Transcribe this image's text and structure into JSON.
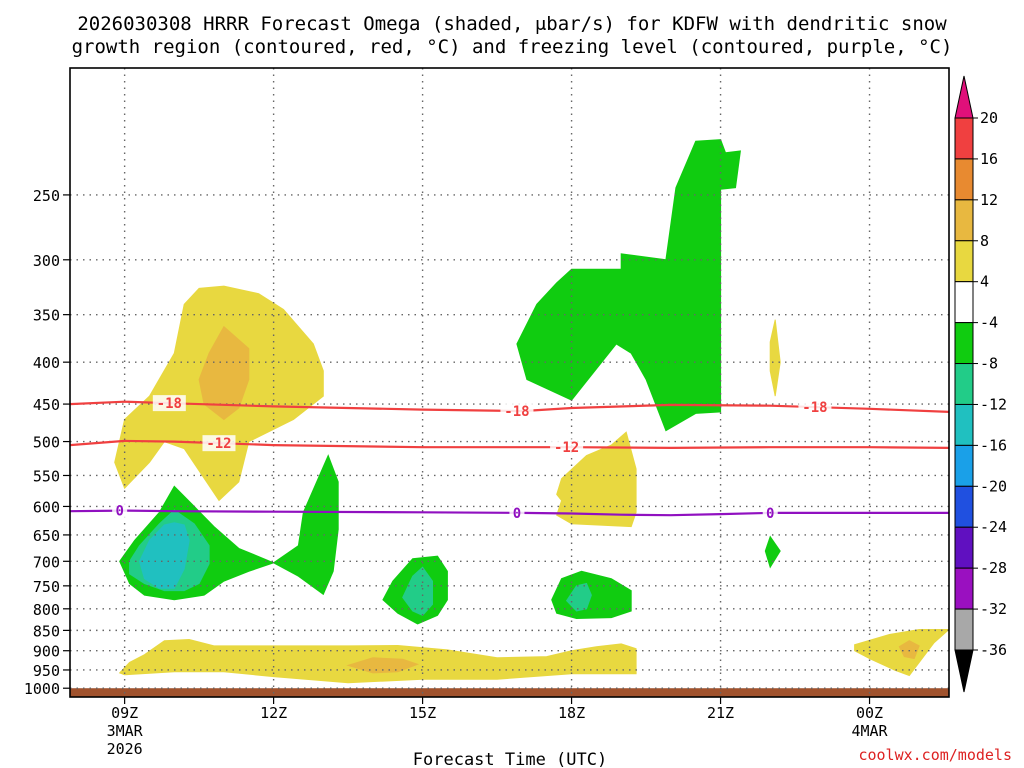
{
  "chart_data": {
    "type": "heatmap",
    "title_line1": "2026030308 HRRR Forecast Omega (shaded, μbar/s) for KDFW with dendritic snow",
    "title_line2": "growth region (contoured, red, °C) and freezing level (contoured, purple, °C)",
    "xlabel": "Forecast Time (UTC)",
    "ylabel": "",
    "credit": "coolwx.com/models",
    "x_range_hours": [
      7.9,
      25.6
    ],
    "y_range_hpa": [
      1025,
      175
    ],
    "pressure_ticks": [
      250,
      300,
      350,
      400,
      450,
      500,
      550,
      600,
      650,
      700,
      750,
      800,
      850,
      900,
      950,
      1000
    ],
    "pressure_tick_labels": [
      "250",
      "300",
      "350",
      "400",
      "450",
      "500",
      "550",
      "600",
      "650",
      "700",
      "750",
      "800",
      "850",
      "900",
      "950",
      "1000"
    ],
    "time_ticks": [
      {
        "hour": 9,
        "label": "09Z",
        "sub1": "3MAR",
        "sub2": "2026"
      },
      {
        "hour": 12,
        "label": "12Z",
        "sub1": "",
        "sub2": ""
      },
      {
        "hour": 15,
        "label": "15Z",
        "sub1": "",
        "sub2": ""
      },
      {
        "hour": 18,
        "label": "18Z",
        "sub1": "",
        "sub2": ""
      },
      {
        "hour": 21,
        "label": "21Z",
        "sub1": "",
        "sub2": ""
      },
      {
        "hour": 24,
        "label": "00Z",
        "sub1": "4MAR",
        "sub2": ""
      }
    ],
    "colorbar": {
      "labels": [
        "20",
        "16",
        "12",
        "8",
        "4",
        "-4",
        "-8",
        "-12",
        "-16",
        "-20",
        "-24",
        "-28",
        "-32",
        "-36"
      ],
      "colors": [
        "#f04040",
        "#e88a30",
        "#e8b840",
        "#e8d840",
        "#ffffff",
        "#10cc10",
        "#22cc88",
        "#20c0c0",
        "#1aa0e8",
        "#2050e0",
        "#6010c0",
        "#9a10c0",
        "#a8a8a8"
      ],
      "top_arrow_color": "#e0107a",
      "bottom_arrow_color": "#000000",
      "ground_color": "#a0522d"
    },
    "contours": [
      {
        "name": "dgz-minus-18",
        "label": "-18",
        "color": "#f04040",
        "points": [
          [
            7.9,
            450
          ],
          [
            9,
            447
          ],
          [
            10,
            449
          ],
          [
            12,
            453
          ],
          [
            15,
            457
          ],
          [
            17,
            459
          ],
          [
            18,
            455
          ],
          [
            20,
            451
          ],
          [
            22,
            452
          ],
          [
            24,
            456
          ],
          [
            25.6,
            460
          ]
        ],
        "label_hours": [
          9.9,
          16.9,
          22.9
        ]
      },
      {
        "name": "dgz-minus-12",
        "label": "-12",
        "color": "#f04040",
        "points": [
          [
            7.9,
            505
          ],
          [
            9,
            499
          ],
          [
            10,
            500
          ],
          [
            12,
            505
          ],
          [
            15,
            508
          ],
          [
            18,
            508
          ],
          [
            20,
            509
          ],
          [
            22,
            508
          ],
          [
            24,
            508
          ],
          [
            25.6,
            509
          ]
        ],
        "label_hours": [
          10.9,
          17.9
        ]
      },
      {
        "name": "freezing-level-0",
        "label": "0",
        "color": "#9010c0",
        "points": [
          [
            7.9,
            608
          ],
          [
            9,
            607
          ],
          [
            10,
            608
          ],
          [
            12,
            609
          ],
          [
            15,
            610
          ],
          [
            17,
            611
          ],
          [
            18,
            612
          ],
          [
            19,
            614
          ],
          [
            20,
            615
          ],
          [
            21,
            613
          ],
          [
            22,
            611
          ],
          [
            24,
            611
          ],
          [
            25.6,
            611
          ]
        ],
        "label_hours": [
          8.9,
          16.9,
          22.0
        ]
      }
    ],
    "shaded_regions": [
      {
        "name": "upward-omega-aloft",
        "value": -4,
        "color": "#10cc10",
        "points": [
          [
            19.9,
            300
          ],
          [
            20.1,
            245
          ],
          [
            20.5,
            215
          ],
          [
            21.0,
            214
          ],
          [
            21.1,
            222
          ],
          [
            21.4,
            221
          ],
          [
            21.3,
            245
          ],
          [
            21.0,
            246
          ],
          [
            21.0,
            460
          ],
          [
            20.5,
            462
          ],
          [
            19.9,
            485
          ],
          [
            19.5,
            420
          ],
          [
            19.2,
            390
          ],
          [
            18.9,
            380
          ],
          [
            18.0,
            445
          ],
          [
            17.1,
            420
          ],
          [
            16.9,
            380
          ],
          [
            17.3,
            340
          ],
          [
            17.7,
            320
          ],
          [
            18.0,
            308
          ],
          [
            19.0,
            308
          ],
          [
            19.0,
            295
          ]
        ]
      },
      {
        "name": "weak-sinking-upper",
        "value": 4,
        "color": "#e8d840",
        "points": [
          [
            9.0,
            570
          ],
          [
            8.8,
            530
          ],
          [
            9.0,
            470
          ],
          [
            9.5,
            440
          ],
          [
            10.0,
            390
          ],
          [
            10.2,
            340
          ],
          [
            10.5,
            325
          ],
          [
            11.0,
            323
          ],
          [
            11.7,
            330
          ],
          [
            12.2,
            345
          ],
          [
            12.8,
            380
          ],
          [
            13.0,
            410
          ],
          [
            13.0,
            440
          ],
          [
            12.4,
            470
          ],
          [
            11.5,
            500
          ],
          [
            11.3,
            560
          ],
          [
            10.9,
            590
          ],
          [
            10.2,
            510
          ],
          [
            9.8,
            500
          ],
          [
            9.5,
            530
          ]
        ]
      },
      {
        "name": "moderate-sinking-upper",
        "value": 8,
        "color": "#e8b840",
        "points": [
          [
            10.6,
            450
          ],
          [
            10.5,
            420
          ],
          [
            10.7,
            390
          ],
          [
            11.0,
            362
          ],
          [
            11.5,
            385
          ],
          [
            11.5,
            420
          ],
          [
            11.3,
            455
          ],
          [
            11.0,
            470
          ]
        ]
      },
      {
        "name": "upward-omega-low-left",
        "value": -4,
        "color": "#10cc10",
        "points": [
          [
            8.9,
            700
          ],
          [
            9.2,
            660
          ],
          [
            9.7,
            610
          ],
          [
            10.0,
            567
          ],
          [
            10.4,
            600
          ],
          [
            10.8,
            635
          ],
          [
            11.3,
            675
          ],
          [
            12.0,
            703
          ],
          [
            11.5,
            720
          ],
          [
            11.0,
            740
          ],
          [
            10.6,
            770
          ],
          [
            10.0,
            780
          ],
          [
            9.4,
            770
          ],
          [
            9.1,
            745
          ]
        ]
      },
      {
        "name": "upward-omega-low-left-core",
        "value": -8,
        "color": "#22cc88",
        "points": [
          [
            9.1,
            700
          ],
          [
            9.3,
            670
          ],
          [
            9.7,
            630
          ],
          [
            10.0,
            606
          ],
          [
            10.4,
            630
          ],
          [
            10.7,
            670
          ],
          [
            10.7,
            705
          ],
          [
            10.5,
            745
          ],
          [
            10.2,
            760
          ],
          [
            9.8,
            760
          ],
          [
            9.4,
            745
          ],
          [
            9.1,
            725
          ]
        ]
      },
      {
        "name": "upward-omega-low-left-center",
        "value": -12,
        "color": "#20c0c0",
        "points": [
          [
            9.3,
            700
          ],
          [
            9.5,
            660
          ],
          [
            9.8,
            632
          ],
          [
            10.0,
            628
          ],
          [
            10.2,
            632
          ],
          [
            10.3,
            660
          ],
          [
            10.2,
            715
          ],
          [
            10.0,
            755
          ],
          [
            9.7,
            755
          ],
          [
            9.4,
            735
          ]
        ]
      },
      {
        "name": "upward-omega-13z",
        "value": -4,
        "color": "#10cc10",
        "points": [
          [
            12.0,
            703
          ],
          [
            12.5,
            670
          ],
          [
            12.6,
            610
          ],
          [
            13.1,
            520
          ],
          [
            13.3,
            560
          ],
          [
            13.3,
            640
          ],
          [
            13.2,
            720
          ],
          [
            13.0,
            768
          ],
          [
            12.5,
            730
          ]
        ]
      },
      {
        "name": "upward-omega-15z",
        "value": -4,
        "color": "#10cc10",
        "points": [
          [
            14.2,
            780
          ],
          [
            14.4,
            740
          ],
          [
            14.8,
            695
          ],
          [
            15.3,
            690
          ],
          [
            15.5,
            720
          ],
          [
            15.5,
            780
          ],
          [
            15.3,
            815
          ],
          [
            14.9,
            835
          ],
          [
            14.5,
            810
          ]
        ]
      },
      {
        "name": "upward-omega-15z-core",
        "value": -8,
        "color": "#22cc88",
        "points": [
          [
            14.6,
            775
          ],
          [
            14.8,
            730
          ],
          [
            15.0,
            712
          ],
          [
            15.2,
            740
          ],
          [
            15.2,
            790
          ],
          [
            15.0,
            815
          ],
          [
            14.8,
            805
          ]
        ]
      },
      {
        "name": "weak-sinking-18z",
        "value": 4,
        "color": "#e8d840",
        "points": [
          [
            17.7,
            580
          ],
          [
            17.8,
            555
          ],
          [
            18.3,
            520
          ],
          [
            18.8,
            505
          ],
          [
            19.1,
            487
          ],
          [
            19.3,
            540
          ],
          [
            19.3,
            610
          ],
          [
            19.2,
            635
          ],
          [
            18.0,
            630
          ],
          [
            17.7,
            615
          ],
          [
            17.8,
            590
          ]
        ]
      },
      {
        "name": "upward-omega-18z",
        "value": -4,
        "color": "#10cc10",
        "points": [
          [
            17.6,
            780
          ],
          [
            17.8,
            735
          ],
          [
            18.2,
            720
          ],
          [
            18.8,
            735
          ],
          [
            19.2,
            760
          ],
          [
            19.2,
            805
          ],
          [
            18.8,
            820
          ],
          [
            18.1,
            822
          ],
          [
            17.7,
            810
          ]
        ]
      },
      {
        "name": "upward-omega-18z-core",
        "value": -8,
        "color": "#22cc88",
        "points": [
          [
            17.9,
            782
          ],
          [
            18.1,
            750
          ],
          [
            18.3,
            745
          ],
          [
            18.4,
            770
          ],
          [
            18.3,
            800
          ],
          [
            18.1,
            805
          ]
        ]
      },
      {
        "name": "weak-sinking-22z-aloft",
        "value": 4,
        "color": "#e8d840",
        "points": [
          [
            22.0,
            378
          ],
          [
            22.1,
            355
          ],
          [
            22.2,
            400
          ],
          [
            22.1,
            440
          ],
          [
            22.0,
            410
          ]
        ]
      },
      {
        "name": "upward-omega-22z",
        "value": -4,
        "color": "#10cc10",
        "points": [
          [
            21.9,
            680
          ],
          [
            22.0,
            653
          ],
          [
            22.2,
            680
          ],
          [
            22.0,
            712
          ]
        ]
      },
      {
        "name": "weak-sinking-boundary-layer",
        "value": 4,
        "color": "#e8d840",
        "points": [
          [
            8.9,
            958
          ],
          [
            9.1,
            930
          ],
          [
            9.4,
            910
          ],
          [
            9.8,
            875
          ],
          [
            10.3,
            872
          ],
          [
            10.8,
            888
          ],
          [
            11.5,
            888
          ],
          [
            12.5,
            888
          ],
          [
            13.5,
            888
          ],
          [
            14.5,
            887
          ],
          [
            15.5,
            898
          ],
          [
            16.5,
            918
          ],
          [
            17.5,
            915
          ],
          [
            18.0,
            900
          ],
          [
            18.5,
            890
          ],
          [
            19.0,
            883
          ],
          [
            19.3,
            895
          ],
          [
            19.3,
            960
          ],
          [
            18.0,
            960
          ],
          [
            16.5,
            975
          ],
          [
            15.0,
            975
          ],
          [
            13.5,
            985
          ],
          [
            12.0,
            968
          ],
          [
            11.0,
            955
          ],
          [
            10.0,
            955
          ],
          [
            9.0,
            963
          ]
        ]
      },
      {
        "name": "moderate-sinking-boundary-layer",
        "value": 8,
        "color": "#e8b840",
        "points": [
          [
            13.5,
            938
          ],
          [
            14.0,
            918
          ],
          [
            14.6,
            922
          ],
          [
            14.9,
            935
          ],
          [
            14.5,
            955
          ],
          [
            14.0,
            958
          ]
        ]
      },
      {
        "name": "weak-sinking-00z-low",
        "value": 4,
        "color": "#e8d840",
        "points": [
          [
            23.7,
            885
          ],
          [
            24.4,
            860
          ],
          [
            25.0,
            848
          ],
          [
            25.6,
            848
          ],
          [
            25.3,
            880
          ],
          [
            25.0,
            930
          ],
          [
            24.8,
            965
          ],
          [
            24.5,
            950
          ],
          [
            24.0,
            920
          ],
          [
            23.7,
            900
          ]
        ]
      },
      {
        "name": "moderate-sinking-00z-low",
        "value": 8,
        "color": "#e8b840",
        "points": [
          [
            24.6,
            890
          ],
          [
            24.8,
            875
          ],
          [
            25.0,
            888
          ],
          [
            24.9,
            920
          ],
          [
            24.7,
            915
          ]
        ]
      }
    ]
  }
}
